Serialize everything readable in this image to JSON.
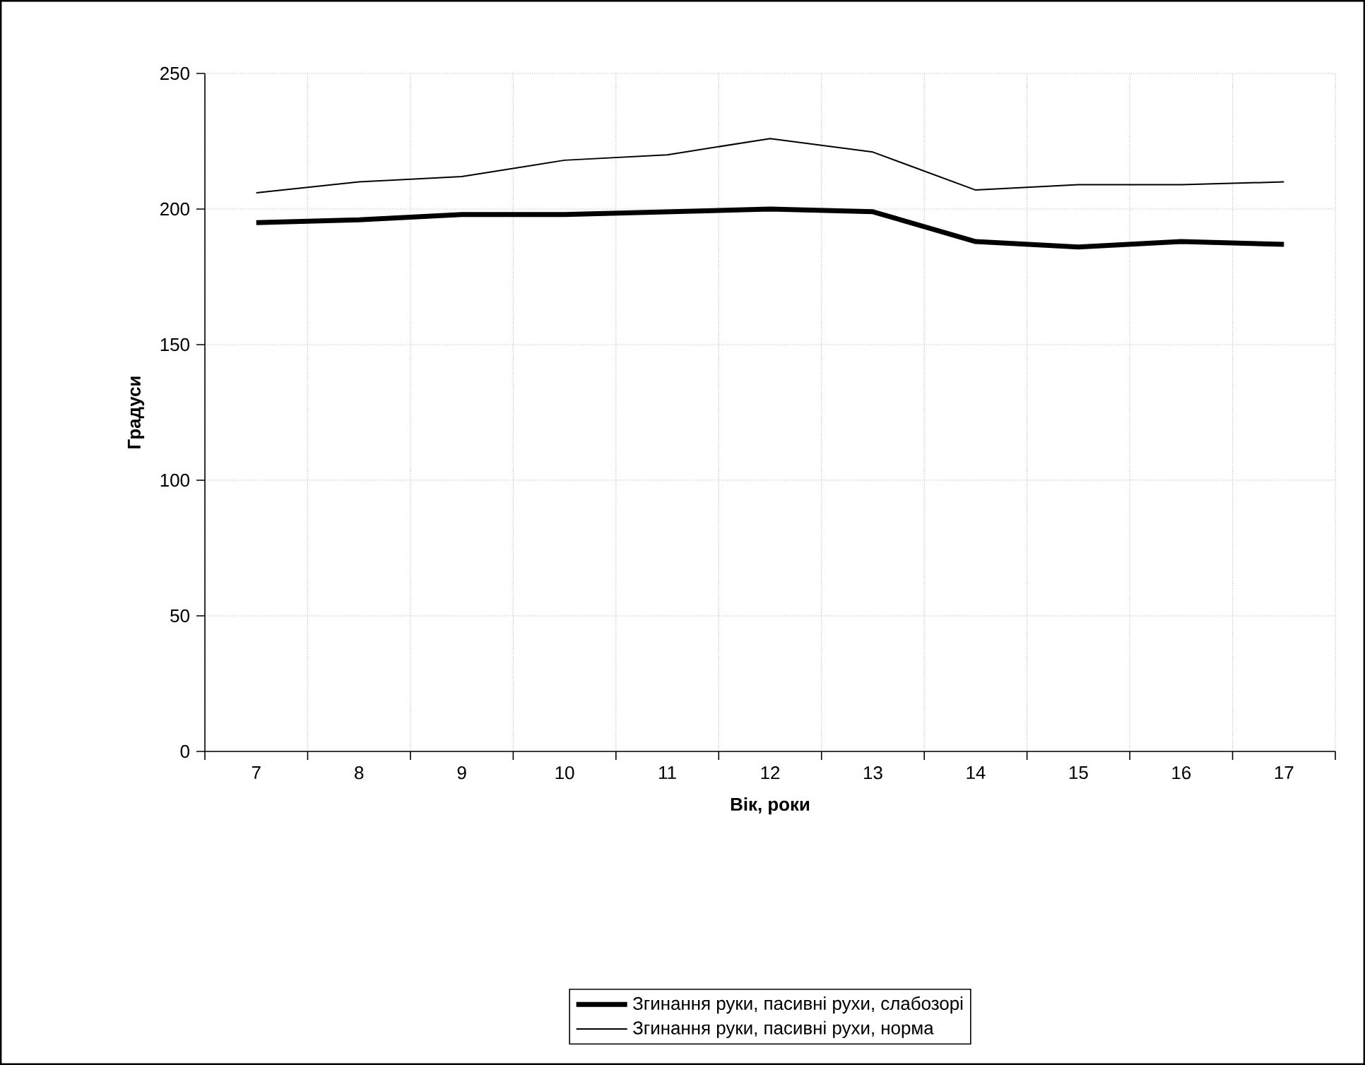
{
  "chart_data": {
    "type": "line",
    "xlabel": "Вік, роки",
    "ylabel": "Градуси",
    "categories": [
      "7",
      "8",
      "9",
      "10",
      "11",
      "12",
      "13",
      "14",
      "15",
      "16",
      "17"
    ],
    "series": [
      {
        "name": "Згинання руки, пасивні рухи, слабозорі",
        "color": "#000000",
        "values": [
          195,
          196,
          198,
          198,
          199,
          200,
          199,
          188,
          186,
          188,
          187
        ]
      },
      {
        "name": "Згинання руки, пасивні рухи, норма",
        "color": "#000000",
        "values": [
          206,
          210,
          212,
          218,
          220,
          226,
          221,
          207,
          209,
          209,
          210
        ]
      }
    ],
    "ylim": [
      0,
      250
    ],
    "yticks": [
      0,
      50,
      100,
      150,
      200,
      250
    ],
    "grid": true,
    "legend": "bottom",
    "marker": "none",
    "line_style": "solid"
  }
}
